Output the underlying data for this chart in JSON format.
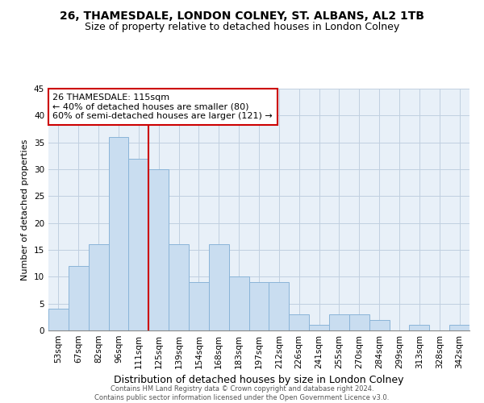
{
  "title1": "26, THAMESDALE, LONDON COLNEY, ST. ALBANS, AL2 1TB",
  "title2": "Size of property relative to detached houses in London Colney",
  "xlabel": "Distribution of detached houses by size in London Colney",
  "ylabel": "Number of detached properties",
  "categories": [
    "53sqm",
    "67sqm",
    "82sqm",
    "96sqm",
    "111sqm",
    "125sqm",
    "139sqm",
    "154sqm",
    "168sqm",
    "183sqm",
    "197sqm",
    "212sqm",
    "226sqm",
    "241sqm",
    "255sqm",
    "270sqm",
    "284sqm",
    "299sqm",
    "313sqm",
    "328sqm",
    "342sqm"
  ],
  "values": [
    4,
    12,
    16,
    36,
    32,
    30,
    16,
    9,
    16,
    10,
    9,
    9,
    3,
    1,
    3,
    3,
    2,
    0,
    1,
    0,
    1
  ],
  "bar_color": "#c9ddf0",
  "bar_edge_color": "#8ab4d8",
  "vline_color": "#cc0000",
  "vline_index": 4,
  "annotation_title": "26 THAMESDALE: 115sqm",
  "annotation_line1": "← 40% of detached houses are smaller (80)",
  "annotation_line2": "60% of semi-detached houses are larger (121) →",
  "annotation_box_facecolor": "#ffffff",
  "annotation_box_edgecolor": "#cc0000",
  "ylim": [
    0,
    45
  ],
  "yticks": [
    0,
    5,
    10,
    15,
    20,
    25,
    30,
    35,
    40,
    45
  ],
  "footer1": "Contains HM Land Registry data © Crown copyright and database right 2024.",
  "footer2": "Contains public sector information licensed under the Open Government Licence v3.0.",
  "bg_color": "#ffffff",
  "plot_bg_color": "#e8f0f8",
  "grid_color": "#c0cfe0",
  "title1_fontsize": 10,
  "title2_fontsize": 9,
  "xlabel_fontsize": 9,
  "ylabel_fontsize": 8,
  "tick_fontsize": 7.5,
  "annotation_fontsize": 8,
  "footer_fontsize": 6
}
